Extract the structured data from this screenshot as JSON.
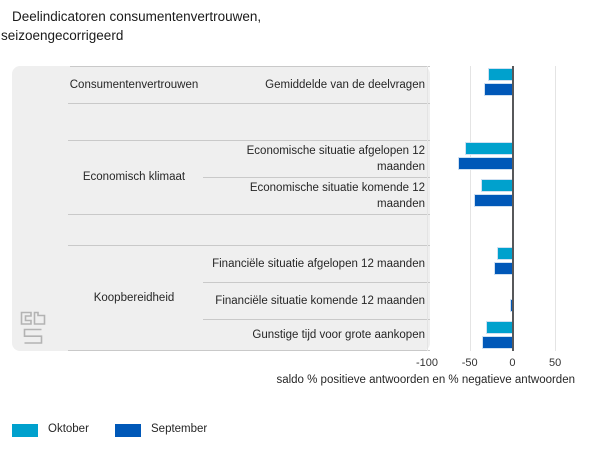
{
  "title": {
    "line1": "Deelindicatoren consumentenvertrouwen,",
    "line2": "seizoengecorrigeerd"
  },
  "chart_data": {
    "type": "bar",
    "orientation": "horizontal",
    "title": "Deelindicatoren consumentenvertrouwen, seizoengecorrigeerd",
    "xlabel": "saldo % positieve antwoorden en % negatieve antwoorden",
    "xlim": [
      -100,
      50
    ],
    "xticks": [
      -100,
      -50,
      0,
      50
    ],
    "grid": "vertical-light-with-dark-zero-line",
    "legend_position": "bottom-left",
    "series_names": [
      "Oktober",
      "September"
    ],
    "colors": {
      "oktober": "#00a1cd",
      "september": "#0058b8",
      "bar_border": "#cfe0f2",
      "panel_background": "#efefef",
      "zero_line": "#57585a"
    },
    "groups": [
      {
        "name": "Consumentenvertrouwen",
        "rows": [
          {
            "label": "Gemiddelde van de deelvragen",
            "oktober": -27,
            "september": -32
          }
        ]
      },
      {
        "name": "Economisch klimaat",
        "rows": [
          {
            "label": "Economische situatie afgelopen 12 maanden",
            "oktober": -55,
            "september": -63
          },
          {
            "label": "Economische situatie komende 12 maanden",
            "oktober": -36,
            "september": -44
          }
        ]
      },
      {
        "name": "Koopbereidheid",
        "rows": [
          {
            "label": "Financiële situatie afgelopen 12 maanden",
            "oktober": -17,
            "september": -20
          },
          {
            "label": "Financiële situatie komende 12 maanden",
            "oktober": 0,
            "september": -2
          },
          {
            "label": "Gunstige tijd voor grote aankopen",
            "oktober": -30,
            "september": -34
          }
        ]
      }
    ]
  },
  "legend": [
    {
      "label": "Oktober",
      "color": "#00a1cd"
    },
    {
      "label": "September",
      "color": "#0058b8"
    }
  ],
  "logo": {
    "name": "cbs-logo"
  }
}
